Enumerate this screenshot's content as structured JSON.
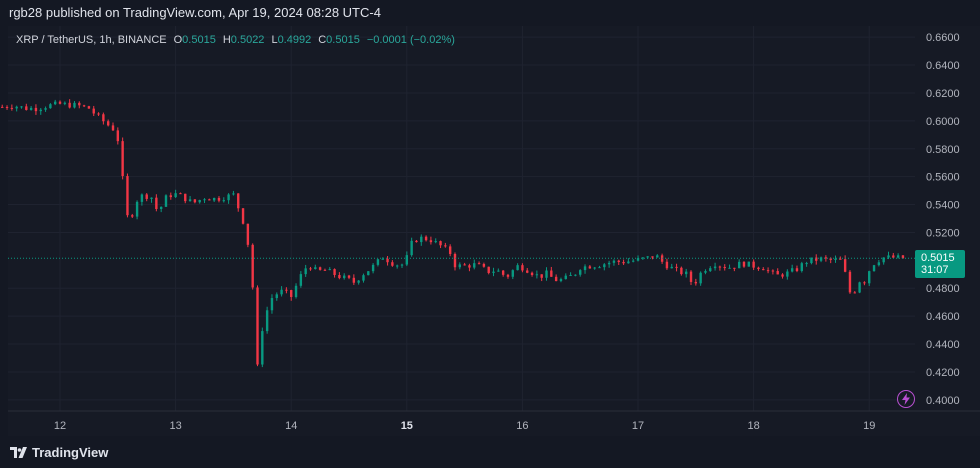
{
  "header": {
    "publisher_line": "rgb28 published on TradingView.com, Apr 19, 2024 08:28 UTC-4"
  },
  "legend": {
    "symbol": "XRP / TetherUS, 1h, BINANCE",
    "open_label": "O",
    "open": "0.5015",
    "high_label": "H",
    "high": "0.5022",
    "low_label": "L",
    "low": "0.4992",
    "close_label": "C",
    "close": "0.5015",
    "change": "−0.0001 (−0.02%)"
  },
  "price_badge": {
    "price": "0.5015",
    "countdown": "31:07"
  },
  "footer": {
    "brand": "TradingView"
  },
  "colors": {
    "up": "#089981",
    "down": "#f23645",
    "background": "#161a25",
    "accent": "#b84fd1"
  },
  "icons": {
    "brand": "tradingview-logo-icon",
    "flash": "lightning-icon"
  },
  "chart_data": {
    "type": "candlestick",
    "title": "",
    "xlabel": "",
    "ylabel": "",
    "ylim": [
      0.392,
      0.668
    ],
    "y_ticks": [
      "0.6600",
      "0.6400",
      "0.6200",
      "0.6000",
      "0.5800",
      "0.5600",
      "0.5400",
      "0.5200",
      "0.4800",
      "0.4600",
      "0.4400",
      "0.4200",
      "0.4000"
    ],
    "x_ticks": [
      {
        "label": "12",
        "day": 12,
        "bold": false
      },
      {
        "label": "13",
        "day": 13,
        "bold": false
      },
      {
        "label": "14",
        "day": 14,
        "bold": false
      },
      {
        "label": "15",
        "day": 15,
        "bold": true
      },
      {
        "label": "16",
        "day": 16,
        "bold": false
      },
      {
        "label": "17",
        "day": 17,
        "bold": false
      },
      {
        "label": "18",
        "day": 18,
        "bold": false
      },
      {
        "label": "19",
        "day": 19,
        "bold": false
      }
    ],
    "last_price": 0.5015,
    "grid": true,
    "close_path": [
      [
        11.5,
        0.61
      ],
      [
        11.6,
        0.611
      ],
      [
        11.7,
        0.609
      ],
      [
        11.8,
        0.609
      ],
      [
        11.9,
        0.611
      ],
      [
        12.0,
        0.612
      ],
      [
        12.15,
        0.611
      ],
      [
        12.25,
        0.609
      ],
      [
        12.3,
        0.605
      ],
      [
        12.4,
        0.598
      ],
      [
        12.48,
        0.593
      ],
      [
        12.52,
        0.58
      ],
      [
        12.56,
        0.54
      ],
      [
        12.6,
        0.525
      ],
      [
        12.65,
        0.542
      ],
      [
        12.72,
        0.547
      ],
      [
        12.8,
        0.545
      ],
      [
        12.85,
        0.533
      ],
      [
        12.9,
        0.544
      ],
      [
        12.98,
        0.548
      ],
      [
        13.05,
        0.546
      ],
      [
        13.15,
        0.541
      ],
      [
        13.25,
        0.545
      ],
      [
        13.35,
        0.544
      ],
      [
        13.45,
        0.546
      ],
      [
        13.5,
        0.547
      ],
      [
        13.53,
        0.54
      ],
      [
        13.57,
        0.533
      ],
      [
        13.6,
        0.522
      ],
      [
        13.63,
        0.51
      ],
      [
        13.65,
        0.495
      ],
      [
        13.67,
        0.478
      ],
      [
        13.69,
        0.44
      ],
      [
        13.71,
        0.422
      ],
      [
        13.73,
        0.447
      ],
      [
        13.77,
        0.455
      ],
      [
        13.81,
        0.472
      ],
      [
        13.85,
        0.474
      ],
      [
        13.9,
        0.478
      ],
      [
        13.95,
        0.477
      ],
      [
        14.0,
        0.474
      ],
      [
        14.05,
        0.483
      ],
      [
        14.1,
        0.492
      ],
      [
        14.15,
        0.497
      ],
      [
        14.22,
        0.492
      ],
      [
        14.3,
        0.493
      ],
      [
        14.4,
        0.489
      ],
      [
        14.5,
        0.486
      ],
      [
        14.55,
        0.484
      ],
      [
        14.6,
        0.489
      ],
      [
        14.7,
        0.495
      ],
      [
        14.8,
        0.503
      ],
      [
        14.85,
        0.499
      ],
      [
        14.95,
        0.496
      ],
      [
        15.0,
        0.502
      ],
      [
        15.05,
        0.514
      ],
      [
        15.12,
        0.516
      ],
      [
        15.2,
        0.515
      ],
      [
        15.3,
        0.51
      ],
      [
        15.38,
        0.505
      ],
      [
        15.42,
        0.496
      ],
      [
        15.5,
        0.496
      ],
      [
        15.6,
        0.497
      ],
      [
        15.7,
        0.492
      ],
      [
        15.78,
        0.493
      ],
      [
        15.82,
        0.49
      ],
      [
        15.88,
        0.489
      ],
      [
        15.95,
        0.496
      ],
      [
        16.0,
        0.495
      ],
      [
        16.05,
        0.493
      ],
      [
        16.15,
        0.488
      ],
      [
        16.2,
        0.491
      ],
      [
        16.28,
        0.486
      ],
      [
        16.35,
        0.486
      ],
      [
        16.45,
        0.49
      ],
      [
        16.5,
        0.495
      ],
      [
        16.58,
        0.496
      ],
      [
        16.68,
        0.497
      ],
      [
        16.78,
        0.499
      ],
      [
        16.88,
        0.499
      ],
      [
        16.98,
        0.5
      ],
      [
        17.1,
        0.502
      ],
      [
        17.15,
        0.504
      ],
      [
        17.22,
        0.498
      ],
      [
        17.32,
        0.493
      ],
      [
        17.42,
        0.49
      ],
      [
        17.48,
        0.482
      ],
      [
        17.52,
        0.488
      ],
      [
        17.56,
        0.493
      ],
      [
        17.6,
        0.495
      ],
      [
        17.66,
        0.498
      ],
      [
        17.72,
        0.496
      ],
      [
        17.8,
        0.495
      ],
      [
        17.9,
        0.498
      ],
      [
        18.0,
        0.496
      ],
      [
        18.08,
        0.495
      ],
      [
        18.15,
        0.491
      ],
      [
        18.2,
        0.489
      ],
      [
        18.3,
        0.491
      ],
      [
        18.38,
        0.494
      ],
      [
        18.45,
        0.499
      ],
      [
        18.5,
        0.5
      ],
      [
        18.58,
        0.501
      ],
      [
        18.66,
        0.5
      ],
      [
        18.72,
        0.5
      ],
      [
        18.76,
        0.5
      ],
      [
        18.8,
        0.488
      ],
      [
        18.84,
        0.475
      ],
      [
        18.88,
        0.479
      ],
      [
        18.92,
        0.486
      ],
      [
        18.96,
        0.485
      ],
      [
        19.0,
        0.493
      ],
      [
        19.05,
        0.499
      ],
      [
        19.12,
        0.502
      ],
      [
        19.2,
        0.502
      ],
      [
        19.3,
        0.5015
      ]
    ]
  }
}
